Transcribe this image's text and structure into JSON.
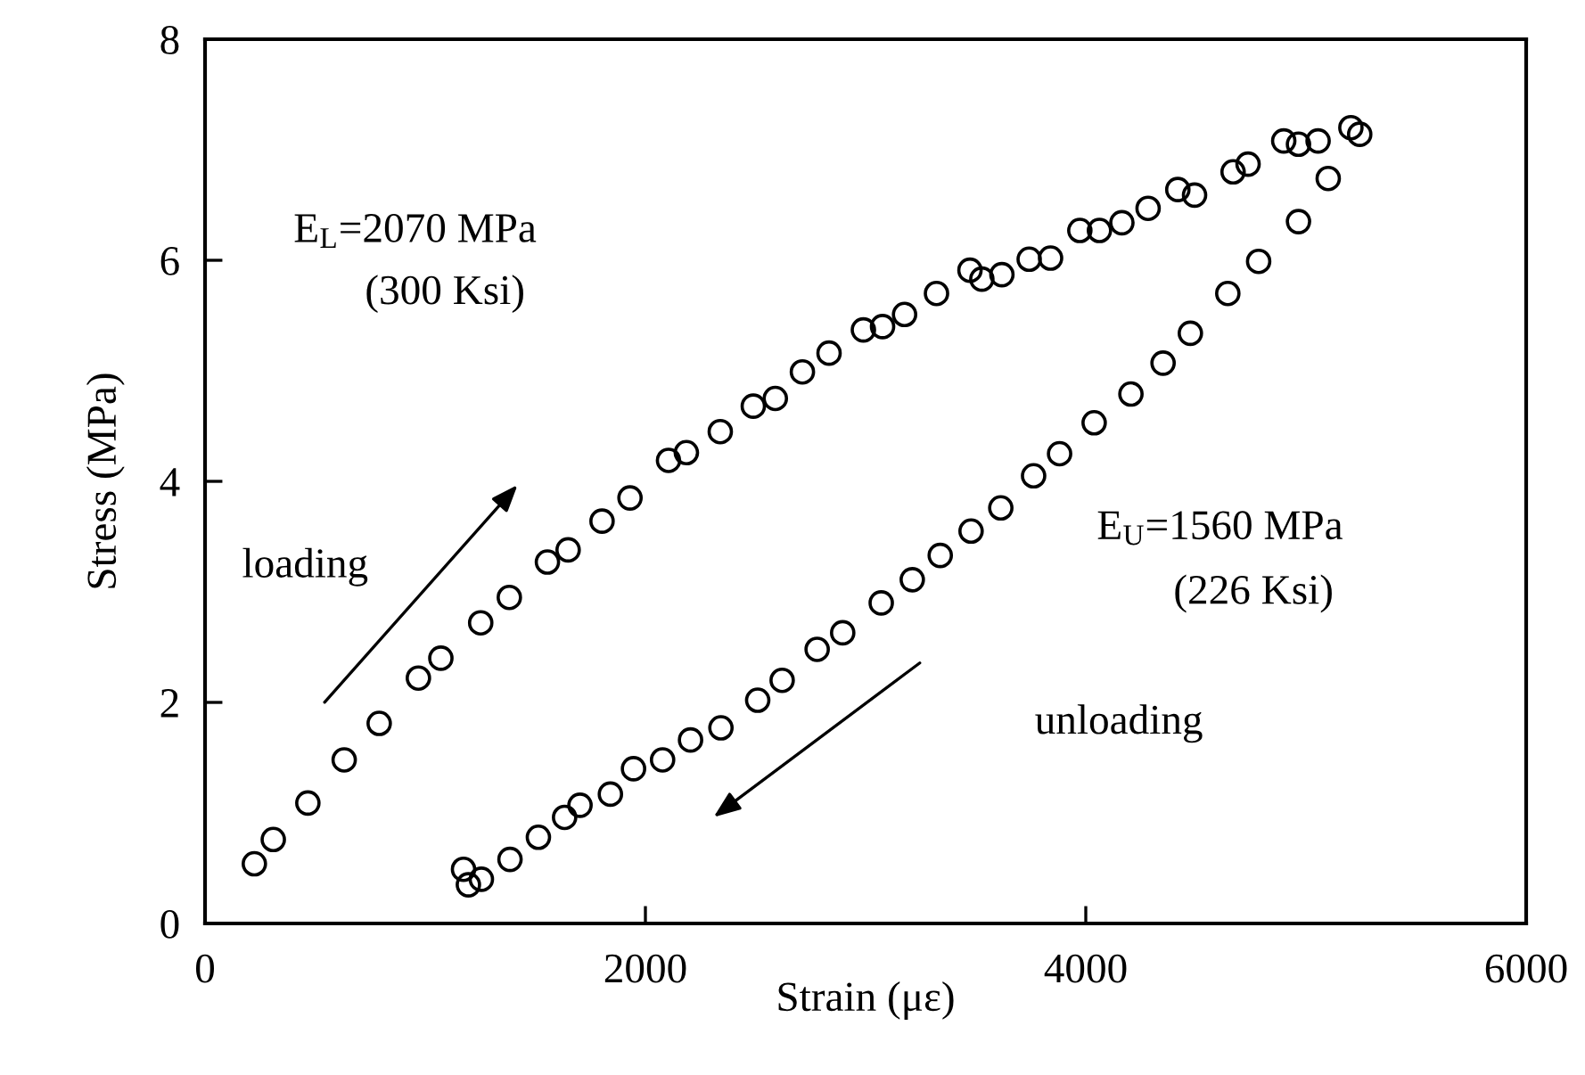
{
  "chart_data": {
    "type": "scatter",
    "xlabel": "Strain (με)",
    "ylabel": "Stress (MPa)",
    "xlim": [
      0,
      6000
    ],
    "ylim": [
      0,
      8
    ],
    "xticks": [
      0,
      2000,
      4000,
      6000
    ],
    "yticks": [
      0,
      2,
      4,
      6,
      8
    ],
    "grid": false,
    "legend": false,
    "marker": "circle",
    "series": [
      {
        "color": "#000000",
        "x": [
          224,
          310,
          467,
          632,
          791,
          969,
          1071,
          1252,
          1382,
          1555,
          1649,
          1803,
          1930,
          2105,
          2186,
          2340,
          2490,
          2590,
          2713,
          2834,
          2990,
          3077,
          3177,
          3322,
          3474,
          3528,
          3619,
          3743,
          3840,
          3973,
          4062,
          4164,
          4283,
          4418,
          4494,
          4669,
          4737,
          4899,
          4966,
          5055,
          5204,
          5244
        ],
        "values": [
          0.54,
          0.76,
          1.09,
          1.48,
          1.81,
          2.22,
          2.4,
          2.72,
          2.95,
          3.27,
          3.38,
          3.64,
          3.85,
          4.19,
          4.26,
          4.45,
          4.68,
          4.75,
          4.99,
          5.16,
          5.37,
          5.4,
          5.51,
          5.7,
          5.91,
          5.83,
          5.87,
          6.01,
          6.02,
          6.27,
          6.27,
          6.34,
          6.47,
          6.64,
          6.59,
          6.8,
          6.87,
          7.08,
          7.05,
          7.08,
          7.2,
          7.14
        ]
      },
      {
        "color": "#000000",
        "x": [
          5101,
          4966,
          4785,
          4645,
          4475,
          4351,
          4205,
          4038,
          3881,
          3763,
          3614,
          3479,
          3339,
          3212,
          3071,
          2896,
          2780,
          2621,
          2510,
          2343,
          2205,
          2078,
          1946,
          1841,
          1703,
          1633,
          1514,
          1385,
          1255,
          1196,
          1174
        ],
        "values": [
          6.74,
          6.35,
          5.99,
          5.7,
          5.34,
          5.07,
          4.79,
          4.53,
          4.25,
          4.05,
          3.76,
          3.55,
          3.33,
          3.11,
          2.9,
          2.63,
          2.48,
          2.2,
          2.02,
          1.77,
          1.66,
          1.48,
          1.4,
          1.17,
          1.07,
          0.96,
          0.78,
          0.58,
          0.4,
          0.35,
          0.49
        ]
      }
    ],
    "annotations": [
      "E$_{L}$=2070 MPa",
      "(300 Ksi)",
      "loading",
      "E$_{U}$=1560 MPa",
      "(226 Ksi)",
      "unloading"
    ]
  }
}
